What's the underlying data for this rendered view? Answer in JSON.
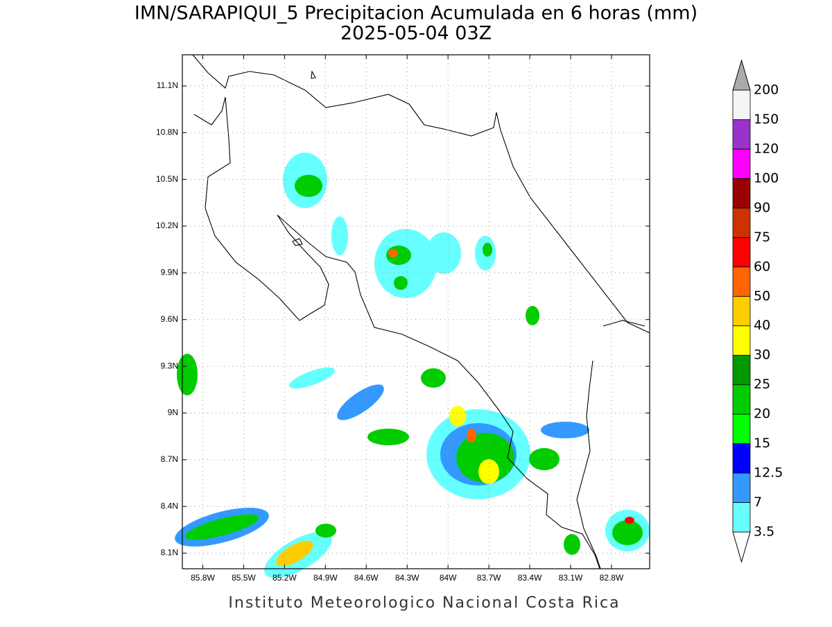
{
  "header": {
    "title": "IMN/SARAPIQUI_5 Precipitacion Acumulada en 6 horas (mm)",
    "subtitle": "2025-05-04 03Z"
  },
  "map": {
    "lonlim": [
      -85.95,
      -82.52
    ],
    "latlim": [
      8.0,
      11.3
    ],
    "lonticks": [
      {
        "value": -85.8,
        "label": "85.8W"
      },
      {
        "value": -85.5,
        "label": "85.5W"
      },
      {
        "value": -85.2,
        "label": "85.2W"
      },
      {
        "value": -84.9,
        "label": "84.9W"
      },
      {
        "value": -84.6,
        "label": "84.6W"
      },
      {
        "value": -84.3,
        "label": "84.3W"
      },
      {
        "value": -84.0,
        "label": "84W"
      },
      {
        "value": -83.7,
        "label": "83.7W"
      },
      {
        "value": -83.4,
        "label": "83.4W"
      },
      {
        "value": -83.1,
        "label": "83.1W"
      },
      {
        "value": -82.8,
        "label": "82.8W"
      }
    ],
    "latticks": [
      {
        "value": 8.1,
        "label": "8.1N"
      },
      {
        "value": 8.4,
        "label": "8.4N"
      },
      {
        "value": 8.7,
        "label": "8.7N"
      },
      {
        "value": 9.0,
        "label": "9N"
      },
      {
        "value": 9.3,
        "label": "9.3N"
      },
      {
        "value": 9.6,
        "label": "9.6N"
      },
      {
        "value": 9.9,
        "label": "9.9N"
      },
      {
        "value": 10.2,
        "label": "10.2N"
      },
      {
        "value": 10.5,
        "label": "10.5N"
      },
      {
        "value": 10.8,
        "label": "10.8N"
      },
      {
        "value": 11.1,
        "label": "11.1N"
      }
    ],
    "grid": true
  },
  "colorbar": {
    "levels": [
      3.5,
      7,
      12.5,
      15,
      20,
      25,
      30,
      40,
      50,
      60,
      75,
      90,
      100,
      120,
      150,
      200
    ],
    "colors": [
      "#66ffff",
      "#3399ff",
      "#0000ff",
      "#00ff00",
      "#00cc00",
      "#009900",
      "#ffff00",
      "#ffcc00",
      "#ff6600",
      "#ff0000",
      "#cc3300",
      "#990000",
      "#ff00ff",
      "#9933cc",
      "#f5f5f5"
    ],
    "under_color": "#ffffff",
    "over_color": "#aaaaaa"
  },
  "footer": "Instituto Meteorologico Nacional Costa Rica"
}
